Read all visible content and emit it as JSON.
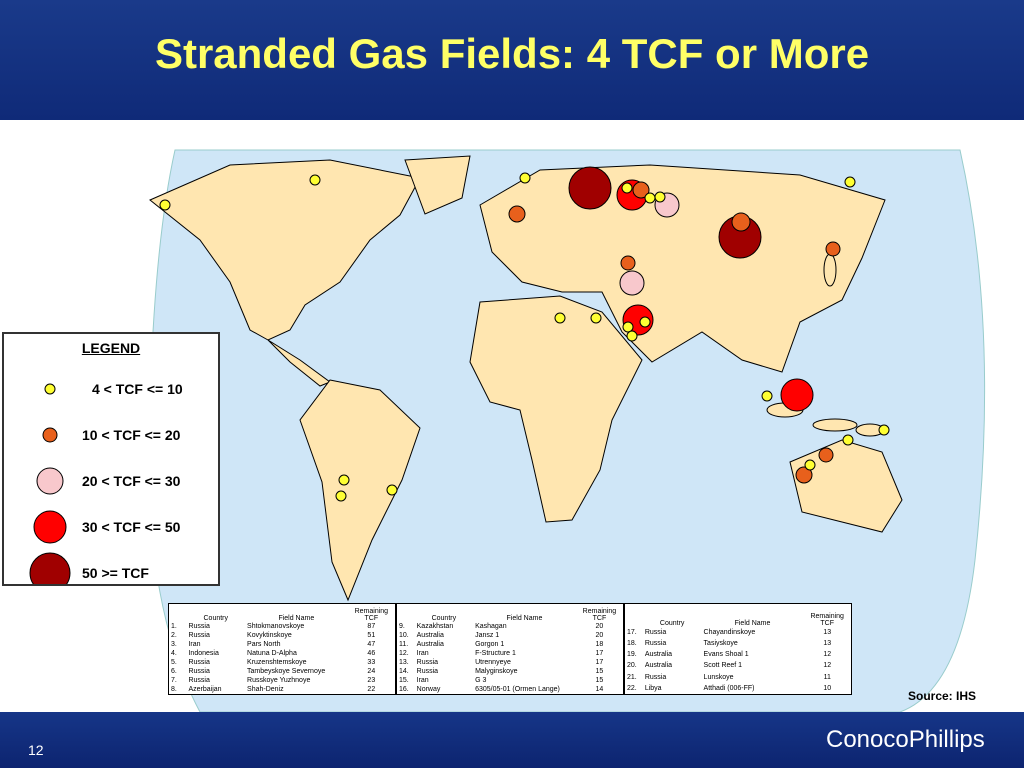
{
  "header": {
    "title": "Stranded Gas Fields: 4 TCF or More"
  },
  "legend": {
    "title": "LEGEND",
    "items": [
      "4 < TCF <= 10",
      "10 < TCF <= 20",
      "20 < TCF <= 30",
      "30 < TCF <= 50",
      "50 >= TCF"
    ]
  },
  "table": {
    "columns": [
      "Country",
      "Field Name",
      "Remaining TCF"
    ],
    "rows": [
      [
        "1.",
        "Russia",
        "Shtokmanovskoye",
        87
      ],
      [
        "2.",
        "Russia",
        "Kovyktinskoye",
        51
      ],
      [
        "3.",
        "Iran",
        "Pars North",
        47
      ],
      [
        "4.",
        "Indonesia",
        "Natuna D-Alpha",
        46
      ],
      [
        "5.",
        "Russia",
        "Kruzenshtemskoye",
        33
      ],
      [
        "6.",
        "Russia",
        "Tambeyskoye Severnoye",
        24
      ],
      [
        "7.",
        "Russia",
        "Russkoye Yuzhnoye",
        23
      ],
      [
        "8.",
        "Azerbaijan",
        "Shah-Deniz",
        22
      ],
      [
        "9.",
        "Kazakhstan",
        "Kashagan",
        20
      ],
      [
        "10.",
        "Australia",
        "Jansz 1",
        20
      ],
      [
        "11.",
        "Australia",
        "Gorgon 1",
        18
      ],
      [
        "12.",
        "Iran",
        "F-Structure 1",
        17
      ],
      [
        "13.",
        "Russia",
        "Utrennyeye",
        17
      ],
      [
        "14.",
        "Russia",
        "Malyginskoye",
        15
      ],
      [
        "15.",
        "Iran",
        "G 3",
        15
      ],
      [
        "16.",
        "Norway",
        "6305/05-01 (Ormen Lange)",
        14
      ],
      [
        "17.",
        "Russia",
        "Chayandinskoye",
        13
      ],
      [
        "18.",
        "Russia",
        "Tasiyskoye",
        13
      ],
      [
        "19.",
        "Australia",
        "Evans Shoal 1",
        12
      ],
      [
        "20.",
        "Australia",
        "Scott Reef 1",
        12
      ],
      [
        "21.",
        "Russia",
        "Lunskoye",
        11
      ],
      [
        "22.",
        "Libya",
        "Atthadi (006-FF)",
        10
      ]
    ]
  },
  "source": "Source: IHS",
  "footer": {
    "page": "12",
    "logo": "ConocoPhillips"
  }
}
